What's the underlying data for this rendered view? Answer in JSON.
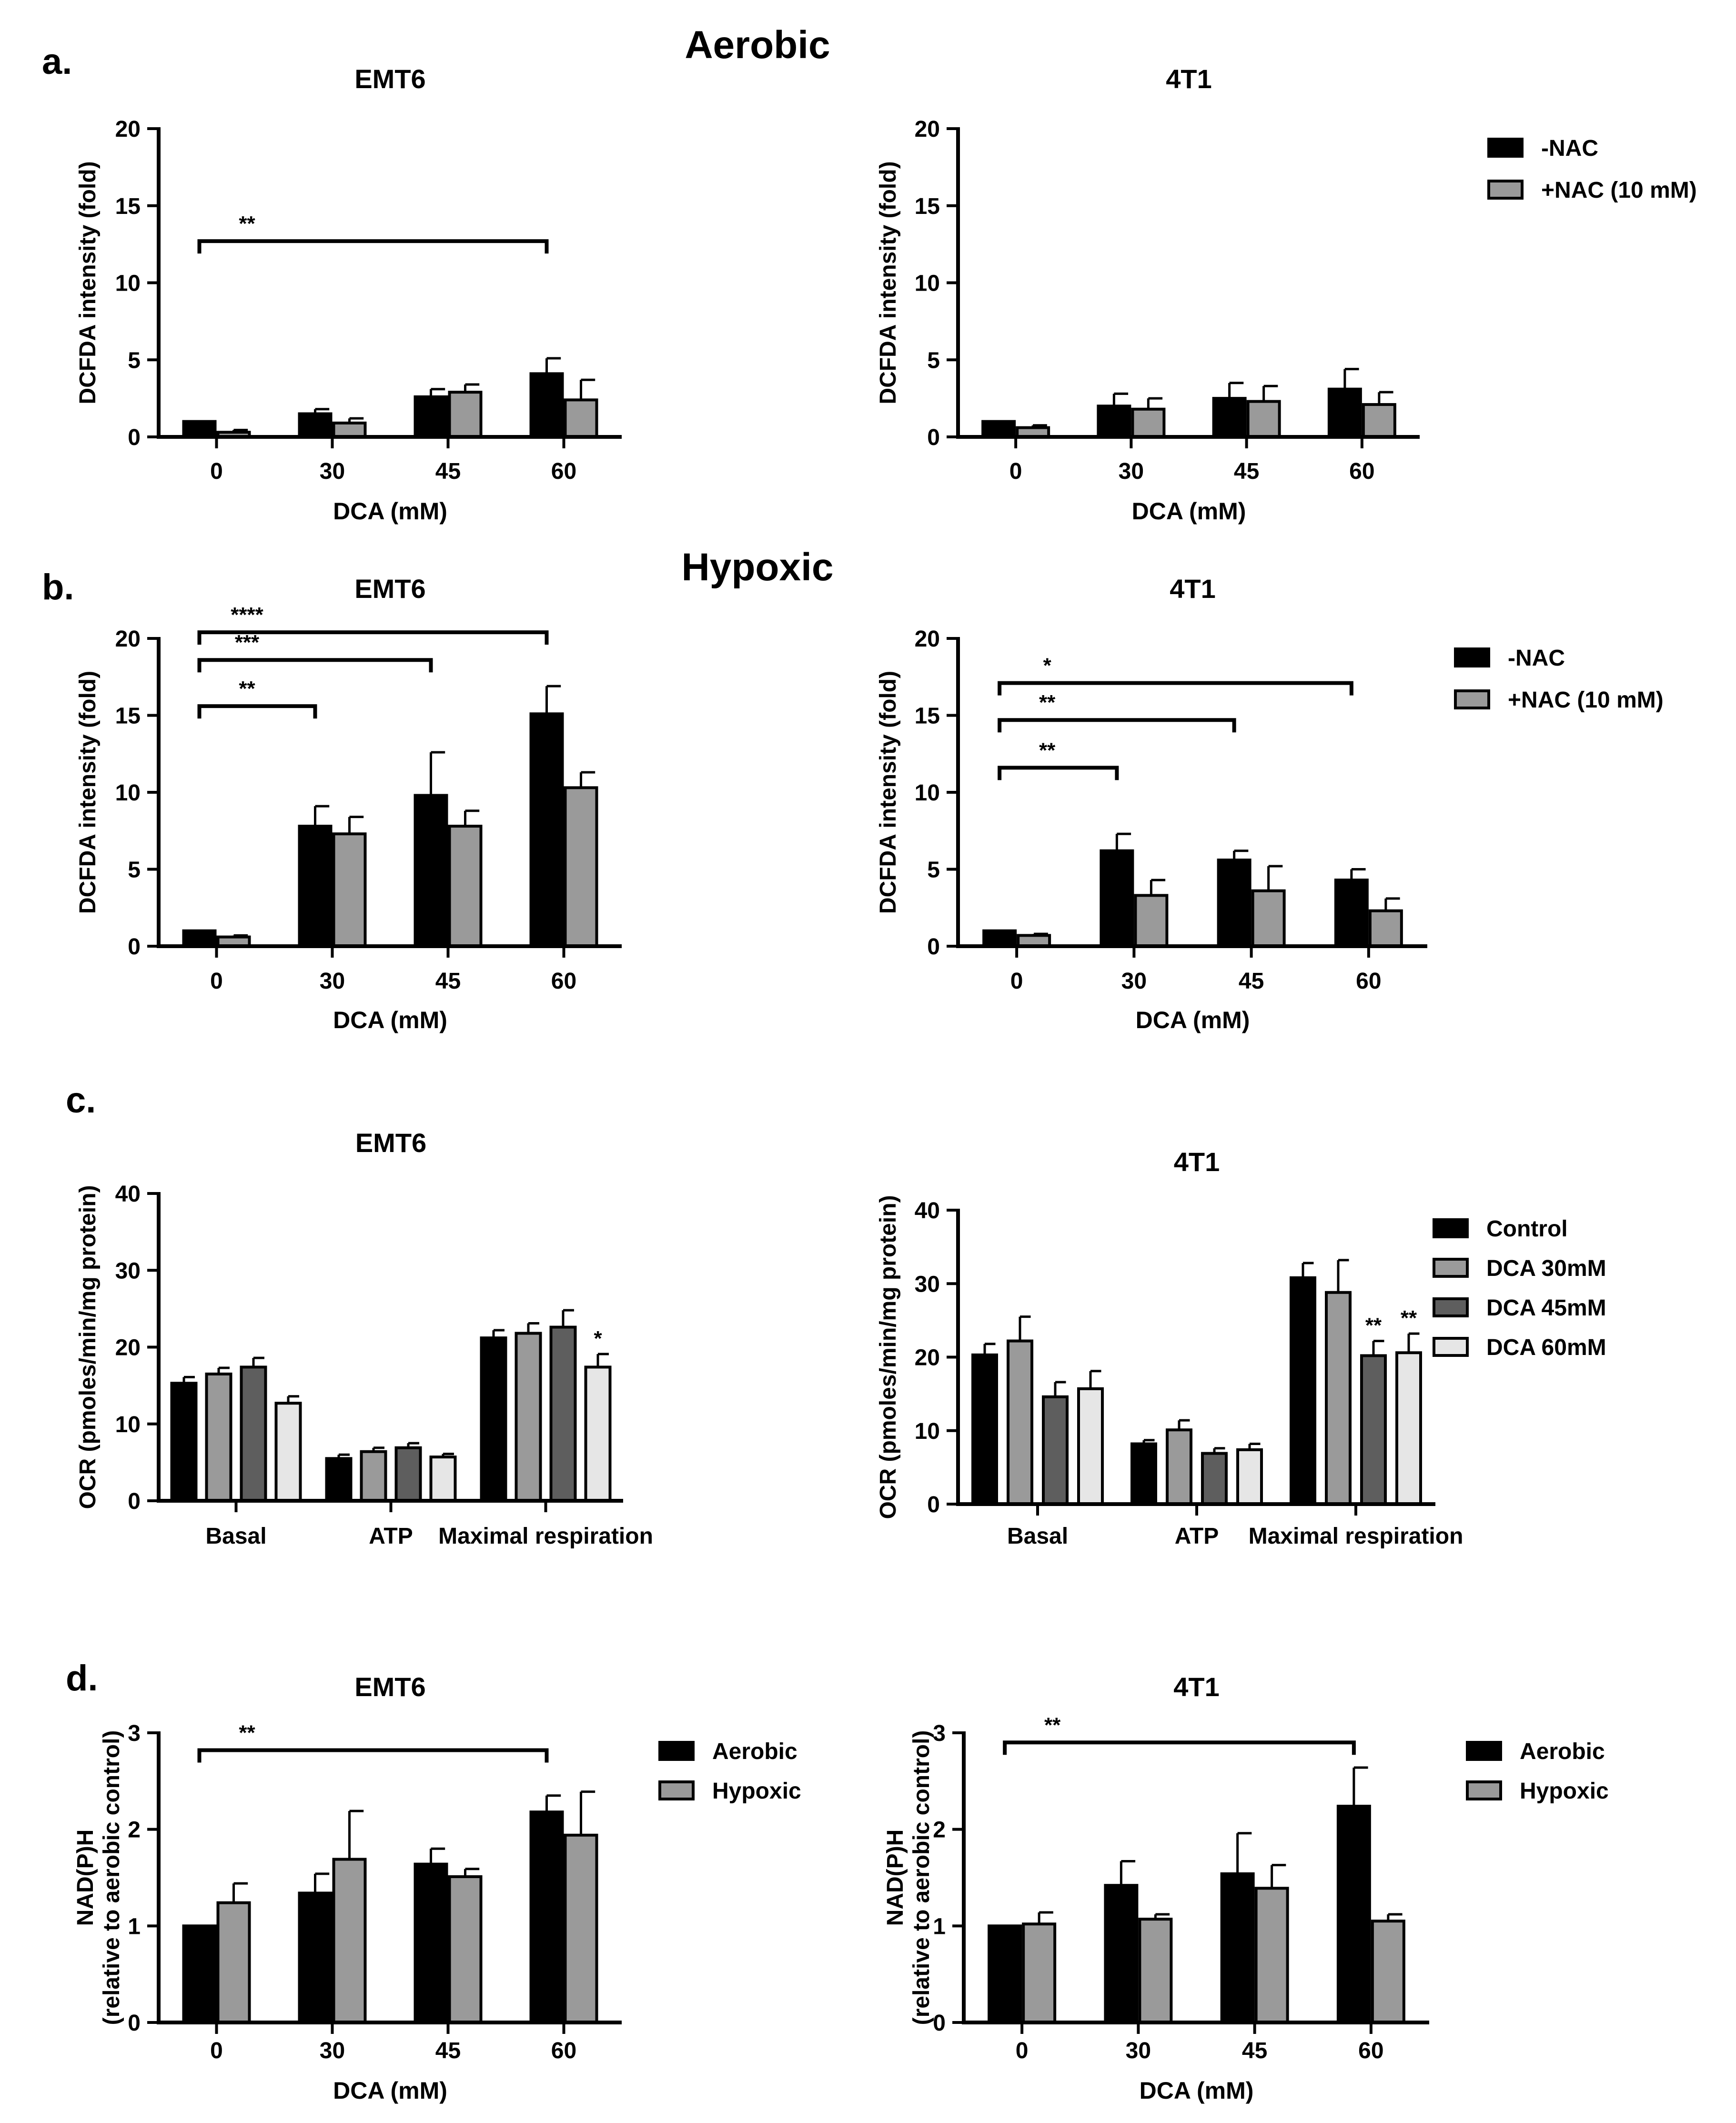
{
  "figure": {
    "section_titles": [
      "Aerobic",
      "Hypoxic"
    ],
    "panel_letters": [
      "a.",
      "b.",
      "c.",
      "d."
    ]
  },
  "colors": {
    "black": "#000000",
    "gray": "#9a9a9a",
    "dark_gray": "#5e5e5e",
    "light_gray": "#e6e6e6",
    "axis": "#000000"
  },
  "chart_data": [
    {
      "id": "a-emt6",
      "type": "bar",
      "title": "EMT6",
      "xlabel": "DCA (mM)",
      "ylabel": "DCFDA intensity (fold)",
      "categories": [
        "0",
        "30",
        "45",
        "60"
      ],
      "ylim": [
        0,
        20
      ],
      "yticks": [
        0,
        5,
        10,
        15,
        20
      ],
      "series": [
        {
          "name": "-NAC",
          "color": "black",
          "values": [
            1.0,
            1.5,
            2.6,
            4.1
          ],
          "errors": [
            0.0,
            0.3,
            0.5,
            1.0
          ]
        },
        {
          "name": "+NAC (10 mM)",
          "color": "gray",
          "values": [
            0.3,
            0.9,
            2.9,
            2.4
          ],
          "errors": [
            0.15,
            0.3,
            0.5,
            1.3
          ]
        }
      ],
      "legend": null,
      "significance": [
        {
          "from": 0,
          "to": 3,
          "label": "**",
          "y": 12.7
        }
      ]
    },
    {
      "id": "a-4t1",
      "type": "bar",
      "title": "4T1",
      "xlabel": "DCA (mM)",
      "ylabel": "DCFDA intensity (fold)",
      "categories": [
        "0",
        "30",
        "45",
        "60"
      ],
      "ylim": [
        0,
        20
      ],
      "yticks": [
        0,
        5,
        10,
        15,
        20
      ],
      "series": [
        {
          "name": "-NAC",
          "color": "black",
          "values": [
            1.0,
            2.0,
            2.5,
            3.1
          ],
          "errors": [
            0.0,
            0.8,
            1.0,
            1.3
          ]
        },
        {
          "name": "+NAC (10 mM)",
          "color": "gray",
          "values": [
            0.6,
            1.8,
            2.3,
            2.1
          ],
          "errors": [
            0.15,
            0.7,
            1.0,
            0.8
          ]
        }
      ],
      "legend": {
        "position": "right",
        "labels": [
          "-NAC",
          "+NAC (10 mM)"
        ]
      },
      "significance": []
    },
    {
      "id": "b-emt6",
      "type": "bar",
      "title": "EMT6",
      "xlabel": "DCA (mM)",
      "ylabel": "DCFDA intensity (fold)",
      "categories": [
        "0",
        "30",
        "45",
        "60"
      ],
      "ylim": [
        0,
        20
      ],
      "yticks": [
        0,
        5,
        10,
        15,
        20
      ],
      "series": [
        {
          "name": "-NAC",
          "color": "black",
          "values": [
            1.0,
            7.8,
            9.8,
            15.1
          ],
          "errors": [
            0.0,
            1.3,
            2.8,
            1.8
          ]
        },
        {
          "name": "+NAC (10 mM)",
          "color": "gray",
          "values": [
            0.6,
            7.3,
            7.8,
            10.3
          ],
          "errors": [
            0.1,
            1.1,
            1.0,
            1.0
          ]
        }
      ],
      "legend": null,
      "significance": [
        {
          "from": 0,
          "to": 3,
          "label": "****",
          "y": 20.4
        },
        {
          "from": 0,
          "to": 2,
          "label": "***",
          "y": 18.6
        },
        {
          "from": 0,
          "to": 1,
          "label": "**",
          "y": 15.6
        }
      ]
    },
    {
      "id": "b-4t1",
      "type": "bar",
      "title": "4T1",
      "xlabel": "DCA (mM)",
      "ylabel": "DCFDA intensity (fold)",
      "categories": [
        "0",
        "30",
        "45",
        "60"
      ],
      "ylim": [
        0,
        20
      ],
      "yticks": [
        0,
        5,
        10,
        15,
        20
      ],
      "series": [
        {
          "name": "-NAC",
          "color": "black",
          "values": [
            1.0,
            6.2,
            5.6,
            4.3
          ],
          "errors": [
            0.0,
            1.1,
            0.6,
            0.7
          ]
        },
        {
          "name": "+NAC (10 mM)",
          "color": "gray",
          "values": [
            0.7,
            3.3,
            3.6,
            2.3
          ],
          "errors": [
            0.1,
            1.0,
            1.6,
            0.8
          ]
        }
      ],
      "legend": {
        "position": "right",
        "labels": [
          "-NAC",
          "+NAC (10 mM)"
        ]
      },
      "significance": [
        {
          "from": 0,
          "to": 3,
          "label": "*",
          "y": 17.1
        },
        {
          "from": 0,
          "to": 2,
          "label": "**",
          "y": 14.7
        },
        {
          "from": 0,
          "to": 1,
          "label": "**",
          "y": 11.6
        }
      ]
    },
    {
      "id": "c-emt6",
      "type": "bar",
      "title": "EMT6",
      "xlabel": "",
      "ylabel": "OCR (pmoles/min/mg protein)",
      "categories": [
        "Basal",
        "ATP",
        "Maximal respiration"
      ],
      "ylim": [
        0,
        40
      ],
      "yticks": [
        0,
        10,
        20,
        30,
        40
      ],
      "series": [
        {
          "name": "Control",
          "color": "black",
          "values": [
            15.3,
            5.5,
            21.2
          ],
          "errors": [
            0.8,
            0.5,
            1.0
          ]
        },
        {
          "name": "DCA 30mM",
          "color": "gray",
          "values": [
            16.5,
            6.4,
            21.8
          ],
          "errors": [
            0.8,
            0.5,
            1.3
          ]
        },
        {
          "name": "DCA 45mM",
          "color": "dark_gray",
          "values": [
            17.4,
            6.9,
            22.6
          ],
          "errors": [
            1.2,
            0.6,
            2.2
          ]
        },
        {
          "name": "DCA 60mM",
          "color": "light_gray",
          "values": [
            12.7,
            5.7,
            17.4
          ],
          "errors": [
            0.9,
            0.4,
            1.7
          ]
        }
      ],
      "legend": null,
      "significance": [],
      "bar_marks": [
        {
          "group": 2,
          "series": 3,
          "label": "*"
        }
      ]
    },
    {
      "id": "c-4t1",
      "type": "bar",
      "title": "4T1",
      "xlabel": "",
      "ylabel": "OCR (pmoles/min/mg protein)",
      "categories": [
        "Basal",
        "ATP",
        "Maximal respiration"
      ],
      "ylim": [
        0,
        40
      ],
      "yticks": [
        0,
        10,
        20,
        30,
        40
      ],
      "series": [
        {
          "name": "Control",
          "color": "black",
          "values": [
            20.3,
            8.2,
            30.8
          ],
          "errors": [
            1.5,
            0.5,
            2.0
          ]
        },
        {
          "name": "DCA 30mM",
          "color": "gray",
          "values": [
            22.2,
            10.1,
            28.8
          ],
          "errors": [
            3.3,
            1.3,
            4.4
          ]
        },
        {
          "name": "DCA 45mM",
          "color": "dark_gray",
          "values": [
            14.6,
            6.9,
            20.2
          ],
          "errors": [
            2.0,
            0.7,
            2.0
          ]
        },
        {
          "name": "DCA 60mM",
          "color": "light_gray",
          "values": [
            15.7,
            7.4,
            20.6
          ],
          "errors": [
            2.4,
            0.8,
            2.6
          ]
        }
      ],
      "legend": {
        "position": "right",
        "labels": [
          "Control",
          "DCA 30mM",
          "DCA 45mM",
          "DCA 60mM"
        ]
      },
      "significance": [],
      "bar_marks": [
        {
          "group": 2,
          "series": 2,
          "label": "**"
        },
        {
          "group": 2,
          "series": 3,
          "label": "**"
        }
      ]
    },
    {
      "id": "d-emt6",
      "type": "bar",
      "title": "EMT6",
      "xlabel": "DCA (mM)",
      "ylabel": [
        "NAD(P)H",
        "(relative to aerobic control)"
      ],
      "categories": [
        "0",
        "30",
        "45",
        "60"
      ],
      "ylim": [
        0,
        3
      ],
      "yticks": [
        0,
        1,
        2,
        3
      ],
      "series": [
        {
          "name": "Aerobic",
          "color": "black",
          "values": [
            1.0,
            1.34,
            1.64,
            2.18
          ],
          "errors": [
            0.0,
            0.2,
            0.16,
            0.17
          ]
        },
        {
          "name": "Hypoxic",
          "color": "gray",
          "values": [
            1.24,
            1.69,
            1.51,
            1.94
          ],
          "errors": [
            0.2,
            0.5,
            0.08,
            0.45
          ]
        }
      ],
      "legend": {
        "position": "right",
        "labels": [
          "Aerobic",
          "Hypoxic"
        ]
      },
      "significance": [
        {
          "from": 0,
          "to": 3,
          "label": "**",
          "y": 2.82
        }
      ]
    },
    {
      "id": "d-4t1",
      "type": "bar",
      "title": "4T1",
      "xlabel": "DCA (mM)",
      "ylabel": [
        "NAD(P)H",
        "(relative to aerobic control)"
      ],
      "categories": [
        "0",
        "30",
        "45",
        "60"
      ],
      "ylim": [
        0,
        3
      ],
      "yticks": [
        0,
        1,
        2,
        3
      ],
      "series": [
        {
          "name": "Aerobic",
          "color": "black",
          "values": [
            1.0,
            1.42,
            1.54,
            2.24
          ],
          "errors": [
            0.0,
            0.25,
            0.42,
            0.4
          ]
        },
        {
          "name": "Hypoxic",
          "color": "gray",
          "values": [
            1.02,
            1.07,
            1.39,
            1.05
          ],
          "errors": [
            0.12,
            0.05,
            0.24,
            0.07
          ]
        }
      ],
      "legend": {
        "position": "right",
        "labels": [
          "Aerobic",
          "Hypoxic"
        ]
      },
      "significance": [
        {
          "from": 0,
          "to": 3,
          "label": "**",
          "y": 2.9
        }
      ]
    }
  ]
}
